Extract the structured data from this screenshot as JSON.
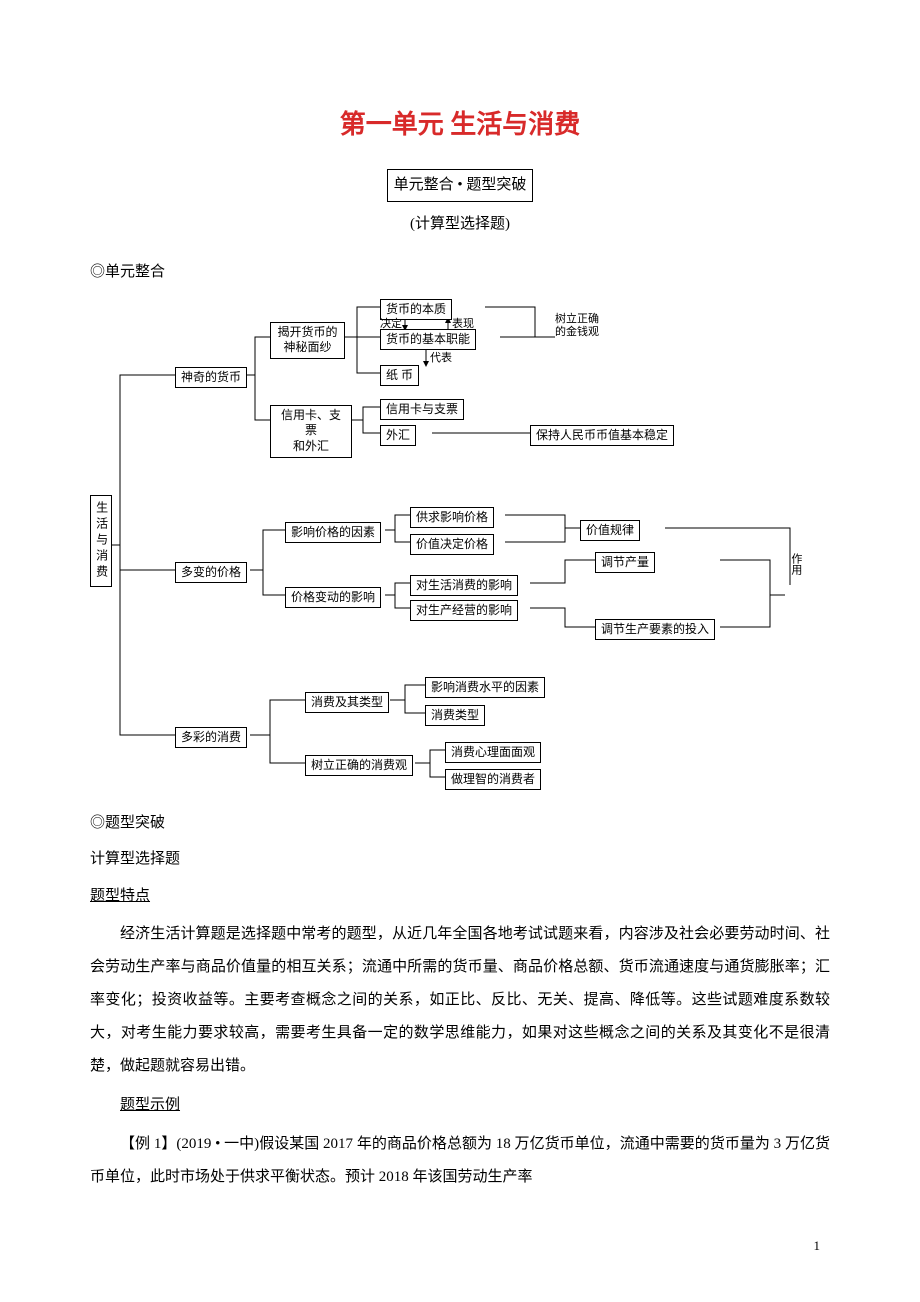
{
  "title": {
    "text": "第一单元 生活与消费",
    "color": "#d82a2a"
  },
  "subtitle": "单元整合 • 题型突破",
  "subtitle2": "(计算型选择题)",
  "markers": {
    "unit_combine": "◎单元整合",
    "type_break": "◎题型突破",
    "calc_type": "计算型选择题",
    "type_feature": "题型特点",
    "type_example": "题型示例"
  },
  "paragraphs": {
    "p1": "经济生活计算题是选择题中常考的题型，从近几年全国各地考试试题来看，内容涉及社会必要劳动时间、社会劳动生产率与商品价值量的相互关系；流通中所需的货币量、商品价格总额、货币流通速度与通货膨胀率；汇率变化；投资收益等。主要考查概念之间的关系，如正比、反比、无关、提高、降低等。这些试题难度系数较大，对考生能力要求较高，需要考生具备一定的数学思维能力，如果对这些概念之间的关系及其变化不是很清楚，做起题就容易出错。",
    "p2": "【例 1】(2019 • 一中)假设某国 2017 年的商品价格总额为 18 万亿货币单位，流通中需要的货币量为 3 万亿货币单位，此时市场处于供求平衡状态。预计 2018 年该国劳动生产率"
  },
  "page_number": "1",
  "diagram": {
    "root": "生活与消费",
    "branches": {
      "b1": {
        "label": "神奇的货币",
        "c1": {
          "label": "揭开货币的\n神秘面纱",
          "n1": "货币的本质",
          "n2": "货币的基本职能",
          "n3": "纸 币",
          "l1": "决定",
          "l2": "表现",
          "l3": "代表"
        },
        "c2": {
          "label": "信用卡、支票\n和外汇",
          "n1": "信用卡与支票",
          "n2": "外汇"
        },
        "side1": "树立正确\n的金钱观",
        "side2": "保持人民币币值基本稳定"
      },
      "b2": {
        "label": "多变的价格",
        "c1": {
          "label": "影响价格的因素",
          "n1": "供求影响价格",
          "n2": "价值决定价格"
        },
        "c2": {
          "label": "价格变动的影响",
          "n1": "对生活消费的影响",
          "n2": "对生产经营的影响"
        },
        "side1": "价值规律",
        "side2": "调节产量",
        "side3": "调节生产要素的投入",
        "side4": "作用"
      },
      "b3": {
        "label": "多彩的消费",
        "c1": {
          "label": "消费及其类型",
          "n1": "影响消费水平的因素",
          "n2": "消费类型"
        },
        "c2": {
          "label": "树立正确的消费观",
          "n1": "消费心理面面观",
          "n2": "做理智的消费者"
        }
      }
    }
  }
}
